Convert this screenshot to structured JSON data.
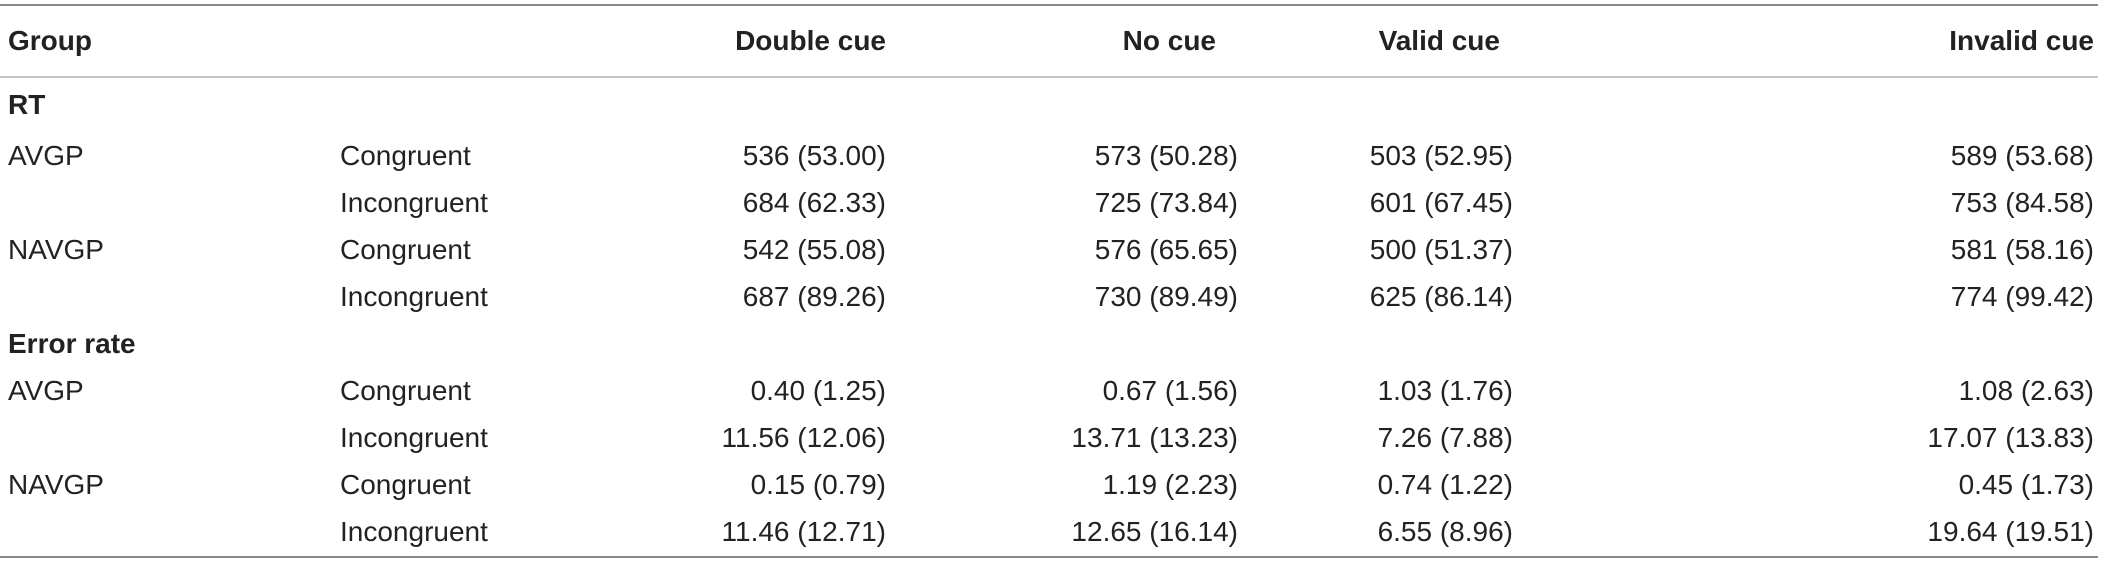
{
  "header": {
    "group": "Group",
    "condition": "",
    "columns": [
      "Double cue",
      "No cue",
      "Valid cue",
      "Invalid cue"
    ]
  },
  "sections": [
    {
      "title": "RT",
      "rows": [
        {
          "group": "AVGP",
          "condition": "Congruent",
          "values": [
            "536 (53.00)",
            "573 (50.28)",
            "503 (52.95)",
            "589 (53.68)"
          ]
        },
        {
          "group": "",
          "condition": "Incongruent",
          "values": [
            "684 (62.33)",
            "725 (73.84)",
            "601 (67.45)",
            "753 (84.58)"
          ]
        },
        {
          "group": "NAVGP",
          "condition": "Congruent",
          "values": [
            "542 (55.08)",
            "576 (65.65)",
            "500 (51.37)",
            "581 (58.16)"
          ]
        },
        {
          "group": "",
          "condition": "Incongruent",
          "values": [
            "687 (89.26)",
            "730 (89.49)",
            "625 (86.14)",
            "774 (99.42)"
          ]
        }
      ]
    },
    {
      "title": "Error rate",
      "rows": [
        {
          "group": "AVGP",
          "condition": "Congruent",
          "values": [
            "0.40 (1.25)",
            "0.67 (1.56)",
            "1.03 (1.76)",
            "1.08 (2.63)"
          ]
        },
        {
          "group": "",
          "condition": "Incongruent",
          "values": [
            "11.56 (12.06)",
            "13.71 (13.23)",
            "7.26 (7.88)",
            "17.07 (13.83)"
          ]
        },
        {
          "group": "NAVGP",
          "condition": "Congruent",
          "values": [
            "0.15 (0.79)",
            "1.19 (2.23)",
            "0.74 (1.22)",
            "0.45 (1.73)"
          ]
        },
        {
          "group": "",
          "condition": "Incongruent",
          "values": [
            "11.46 (12.71)",
            "12.65 (16.14)",
            "6.55 (8.96)",
            "19.64 (19.51)"
          ]
        }
      ]
    }
  ]
}
